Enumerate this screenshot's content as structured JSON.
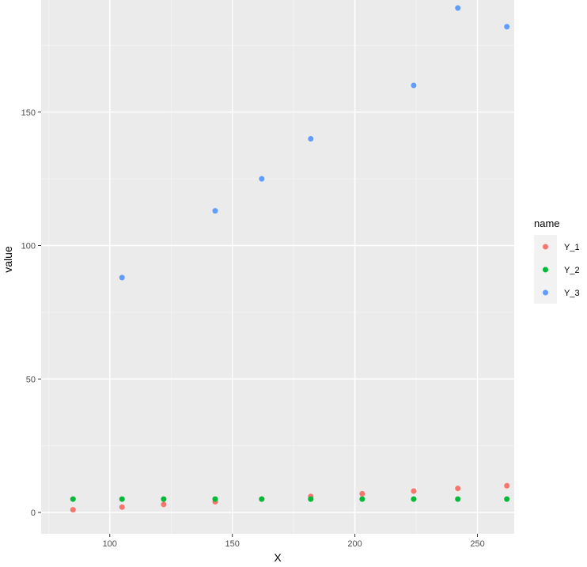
{
  "chart_data": {
    "type": "scatter",
    "xlabel": "X",
    "ylabel": "value",
    "xlim": [
      72,
      265
    ],
    "ylim": [
      -8,
      192
    ],
    "x_ticks": [
      100,
      150,
      200,
      250
    ],
    "y_ticks": [
      0,
      50,
      100,
      150
    ],
    "grid": true,
    "legend": {
      "title": "name",
      "position": "right"
    },
    "x": [
      85,
      105,
      122,
      143,
      162,
      182,
      203,
      224,
      242,
      262
    ],
    "series": [
      {
        "name": "Y_1",
        "color": "#F8766D",
        "values": [
          1,
          2,
          3,
          4,
          5,
          6,
          7,
          8,
          9,
          10
        ]
      },
      {
        "name": "Y_2",
        "color": "#00BA38",
        "values": [
          5,
          5,
          5,
          5,
          5,
          5,
          5,
          5,
          5,
          5
        ]
      },
      {
        "name": "Y_3",
        "color": "#619CFF",
        "values": [
          null,
          88,
          null,
          113,
          125,
          140,
          null,
          160,
          189,
          182
        ]
      }
    ]
  }
}
